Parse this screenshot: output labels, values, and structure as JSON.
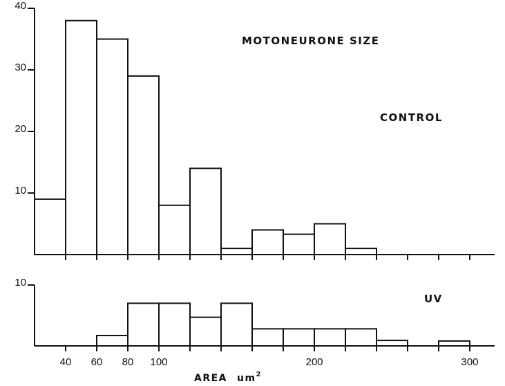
{
  "chart_data": [
    {
      "type": "bar",
      "title": "MOTONEURONE SIZE",
      "group_label": "CONTROL",
      "xlabel": "AREA",
      "xlabel_unit": "um",
      "xlabel_unit_sup": "2",
      "bins": [
        {
          "x0": 20,
          "x1": 40,
          "value": 9
        },
        {
          "x0": 40,
          "x1": 60,
          "value": 38
        },
        {
          "x0": 60,
          "x1": 80,
          "value": 35
        },
        {
          "x0": 80,
          "x1": 100,
          "value": 29
        },
        {
          "x0": 100,
          "x1": 120,
          "value": 8
        },
        {
          "x0": 120,
          "x1": 140,
          "value": 14
        },
        {
          "x0": 140,
          "x1": 160,
          "value": 1
        },
        {
          "x0": 160,
          "x1": 180,
          "value": 4
        },
        {
          "x0": 180,
          "x1": 200,
          "value": 3.3
        },
        {
          "x0": 200,
          "x1": 220,
          "value": 5
        },
        {
          "x0": 220,
          "x1": 240,
          "value": 1
        }
      ],
      "ylim": [
        0,
        40
      ],
      "yticks": [
        {
          "v": 10,
          "label": "10"
        },
        {
          "v": 20,
          "label": "20"
        },
        {
          "v": 30,
          "label": "30"
        },
        {
          "v": 40,
          "label": "40"
        }
      ],
      "xticks": [
        40,
        60,
        80,
        100,
        120,
        140,
        160,
        180,
        200,
        220,
        240,
        260,
        280,
        300
      ],
      "xlim": [
        20,
        320
      ]
    },
    {
      "type": "bar",
      "group_label": "UV",
      "bins": [
        {
          "x0": 60,
          "x1": 80,
          "value": 1.7
        },
        {
          "x0": 80,
          "x1": 100,
          "value": 7
        },
        {
          "x0": 100,
          "x1": 120,
          "value": 7
        },
        {
          "x0": 120,
          "x1": 140,
          "value": 4.7
        },
        {
          "x0": 140,
          "x1": 160,
          "value": 7
        },
        {
          "x0": 160,
          "x1": 180,
          "value": 2.8
        },
        {
          "x0": 180,
          "x1": 200,
          "value": 2.8
        },
        {
          "x0": 200,
          "x1": 220,
          "value": 2.8
        },
        {
          "x0": 220,
          "x1": 240,
          "value": 2.8
        },
        {
          "x0": 240,
          "x1": 260,
          "value": 0.9
        },
        {
          "x0": 280,
          "x1": 300,
          "value": 0.8
        }
      ],
      "ylim": [
        0,
        10
      ],
      "yticks": [
        {
          "v": 10,
          "label": "10"
        }
      ],
      "xticks": [
        40,
        60,
        80,
        100,
        120,
        140,
        160,
        180,
        200,
        220,
        240,
        260,
        280,
        300
      ],
      "xtick_labels": [
        {
          "v": 40,
          "label": "40"
        },
        {
          "v": 60,
          "label": "60"
        },
        {
          "v": 80,
          "label": "80"
        },
        {
          "v": 100,
          "label": "100"
        },
        {
          "v": 200,
          "label": "200"
        },
        {
          "v": 300,
          "label": "300"
        }
      ],
      "xlim": [
        20,
        320
      ]
    }
  ],
  "colors": {
    "stroke": "#111111",
    "fill": "#ffffff"
  }
}
